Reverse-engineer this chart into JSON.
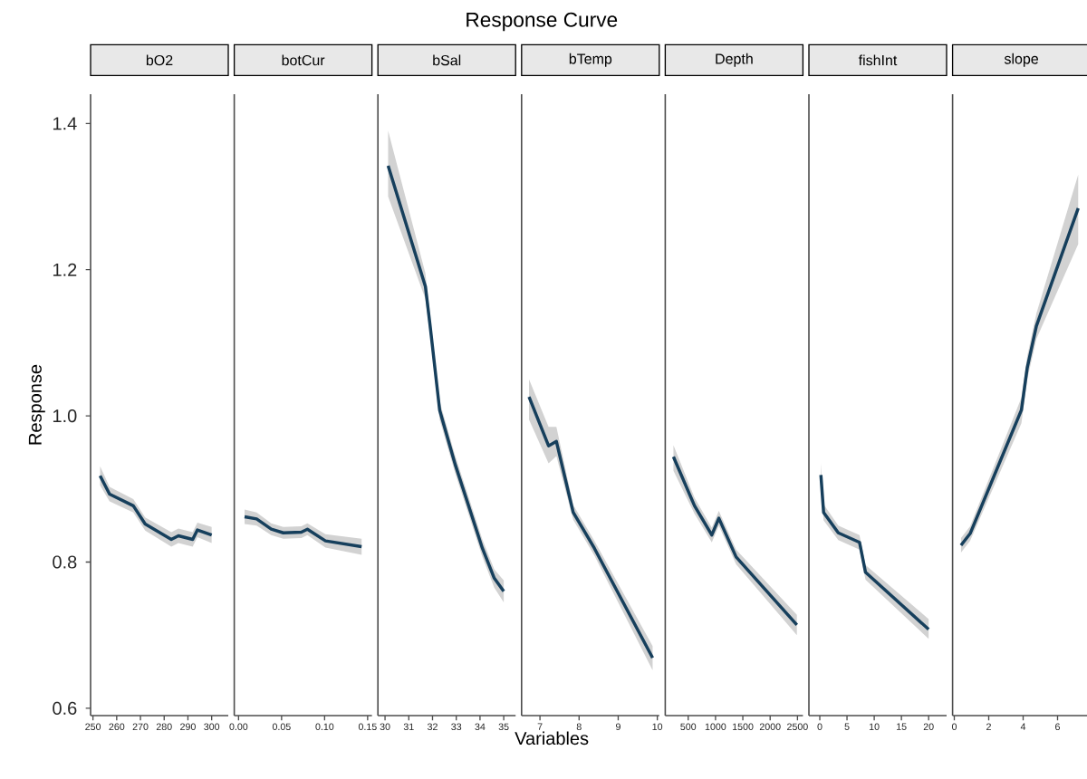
{
  "chart_data": [
    {
      "type": "line",
      "title": "bO2",
      "ylabel": "Response",
      "xlim": [
        249,
        307
      ],
      "xticks": [
        250,
        260,
        270,
        280,
        290,
        300
      ],
      "ylim": [
        0.59,
        1.44
      ],
      "yticks": [
        0.6,
        0.8,
        {
          "value": 1.0,
          "label": "1.0"
        },
        1.2,
        1.4
      ],
      "series": [
        {
          "color": "#163f5c",
          "x": [
            253,
            257,
            267,
            272,
            283,
            286,
            292,
            294,
            300
          ],
          "values": [
            0.918,
            0.893,
            0.877,
            0.852,
            0.831,
            0.836,
            0.831,
            0.844,
            0.837
          ],
          "lower": [
            0.905,
            0.883,
            0.868,
            0.843,
            0.821,
            0.826,
            0.821,
            0.834,
            0.826
          ],
          "upper": [
            0.931,
            0.903,
            0.886,
            0.861,
            0.841,
            0.846,
            0.841,
            0.854,
            0.848
          ]
        }
      ]
    },
    {
      "type": "line",
      "title": "botCur",
      "xlim": [
        -0.005,
        0.155
      ],
      "xticks": [
        {
          "value": 0,
          "label": "0.00"
        },
        0.05,
        {
          "value": 0.1,
          "label": "0.10"
        },
        0.15
      ],
      "ylim": [
        0.59,
        1.44
      ],
      "tick_labels": "x",
      "series": [
        {
          "color": "#163f5c",
          "x": [
            0.007,
            0.021,
            0.038,
            0.052,
            0.073,
            0.08,
            0.101,
            0.143
          ],
          "values": [
            0.862,
            0.859,
            0.845,
            0.84,
            0.841,
            0.845,
            0.829,
            0.821
          ],
          "lower": [
            0.852,
            0.85,
            0.837,
            0.832,
            0.833,
            0.837,
            0.82,
            0.81
          ],
          "upper": [
            0.872,
            0.868,
            0.853,
            0.848,
            0.849,
            0.853,
            0.838,
            0.832
          ]
        }
      ]
    },
    {
      "type": "line",
      "title": "bSal",
      "xlim": [
        29.7,
        35.5
      ],
      "xticks": [
        30,
        31,
        32,
        33,
        34,
        35
      ],
      "ylim": [
        0.59,
        1.44
      ],
      "tick_labels": "x",
      "series": [
        {
          "color": "#163f5c",
          "x": [
            30.13,
            31.7,
            31.9,
            32.3,
            32.95,
            34.1,
            34.6,
            35.0
          ],
          "values": [
            1.342,
            1.177,
            1.123,
            1.008,
            0.934,
            0.819,
            0.778,
            0.76
          ],
          "lower": [
            1.3,
            1.16,
            1.11,
            0.995,
            0.922,
            0.807,
            0.765,
            0.745
          ],
          "upper": [
            1.39,
            1.195,
            1.135,
            1.02,
            0.946,
            0.831,
            0.79,
            0.775
          ]
        }
      ]
    },
    {
      "type": "line",
      "title": "bTemp",
      "xlabel": "Variables",
      "annotations": [
        "Response Curve"
      ],
      "xlim": [
        6.53,
        10.05
      ],
      "xticks": [
        7,
        8,
        9,
        10
      ],
      "ylim": [
        0.59,
        1.44
      ],
      "tick_labels": "x",
      "series": [
        {
          "color": "#163f5c",
          "x": [
            6.72,
            7.22,
            7.42,
            7.85,
            8.39,
            9.88
          ],
          "values": [
            1.026,
            0.959,
            0.965,
            0.868,
            0.819,
            0.669
          ],
          "lower": [
            0.995,
            0.935,
            0.945,
            0.858,
            0.809,
            0.652
          ],
          "upper": [
            1.05,
            0.985,
            0.985,
            0.878,
            0.829,
            0.685
          ]
        }
      ]
    },
    {
      "type": "line",
      "title": "Depth",
      "xlim": [
        80,
        2600
      ],
      "xticks": [
        500,
        1000,
        1500,
        2000,
        2500
      ],
      "ylim": [
        0.59,
        1.44
      ],
      "tick_labels": "x",
      "series": [
        {
          "color": "#163f5c",
          "x": [
            230,
            616,
            932,
            1061,
            1377,
            2489
          ],
          "values": [
            0.944,
            0.877,
            0.837,
            0.86,
            0.807,
            0.714
          ],
          "lower": [
            0.925,
            0.866,
            0.827,
            0.85,
            0.797,
            0.7
          ],
          "upper": [
            0.96,
            0.888,
            0.847,
            0.87,
            0.817,
            0.728
          ]
        }
      ]
    },
    {
      "type": "line",
      "title": "fishInt",
      "xlim": [
        -2,
        23.3
      ],
      "xticks": [
        0,
        5,
        10,
        15,
        20
      ],
      "ylim": [
        0.59,
        1.44
      ],
      "tick_labels": "x",
      "series": [
        {
          "color": "#163f5c",
          "x": [
            0.2,
            0.7,
            3.4,
            7.3,
            8.4,
            20
          ],
          "values": [
            0.919,
            0.868,
            0.84,
            0.827,
            0.786,
            0.708
          ],
          "lower": [
            0.9,
            0.857,
            0.83,
            0.817,
            0.776,
            0.695
          ],
          "upper": [
            0.935,
            0.879,
            0.85,
            0.837,
            0.796,
            0.722
          ]
        }
      ]
    },
    {
      "type": "line",
      "title": "slope",
      "xlim": [
        -0.1,
        7.9
      ],
      "xticks": [
        0,
        2,
        4,
        6
      ],
      "ylim": [
        0.59,
        1.44
      ],
      "tick_labels": "x",
      "series": [
        {
          "color": "#163f5c",
          "x": [
            0.39,
            0.92,
            3.9,
            4.24,
            4.77,
            7.2
          ],
          "values": [
            0.823,
            0.839,
            1.008,
            1.066,
            1.123,
            1.284
          ],
          "lower": [
            0.813,
            0.829,
            0.99,
            1.05,
            1.105,
            1.235
          ],
          "upper": [
            0.833,
            0.849,
            1.025,
            1.082,
            1.14,
            1.33
          ]
        }
      ]
    }
  ]
}
